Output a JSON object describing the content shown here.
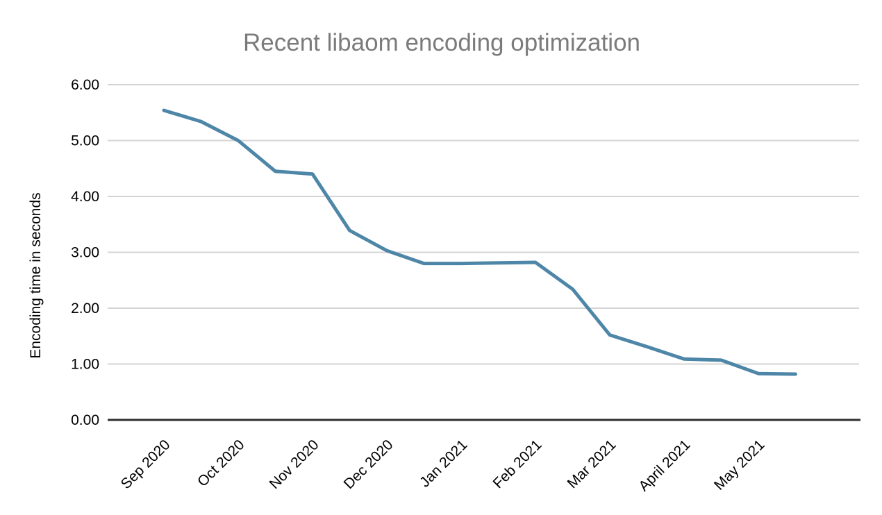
{
  "chart_data": {
    "type": "line",
    "title": "Recent libaom encoding optimization",
    "ylabel": "Encoding time in seconds",
    "xlabel": "",
    "x_tick_labels": [
      "Sep 2020",
      "Oct 2020",
      "Nov 2020",
      "Dec 2020",
      "Jan 2021",
      "Feb 2021",
      "Mar 2021",
      "April 2021",
      "May 2021"
    ],
    "y_tick_labels": [
      "0.00",
      "1.00",
      "2.00",
      "3.00",
      "4.00",
      "5.00",
      "6.00"
    ],
    "ylim": [
      0,
      6
    ],
    "y_tick_step": 1,
    "grid": "horizontal-only",
    "legend": "none",
    "series": [
      {
        "name": "Encoding time",
        "x_unit": "months after Sep 2020 tick (semi-monthly samples)",
        "x": [
          0,
          0.5,
          1,
          1.5,
          2,
          2.5,
          3,
          3.5,
          4,
          4.5,
          5,
          5.5,
          6,
          6.5,
          7,
          7.5,
          8,
          8.5
        ],
        "values": [
          5.54,
          5.34,
          5.0,
          4.45,
          4.4,
          3.39,
          3.03,
          2.8,
          2.8,
          2.81,
          2.82,
          2.34,
          1.52,
          1.31,
          1.09,
          1.07,
          0.83,
          0.82
        ]
      }
    ],
    "colors": {
      "line": "#4e86a8",
      "title": "#7b7b7b",
      "grid": "#d4d4d4",
      "axis": "#2e2e2e",
      "tick_text": "#000000",
      "background": "#ffffff"
    }
  }
}
